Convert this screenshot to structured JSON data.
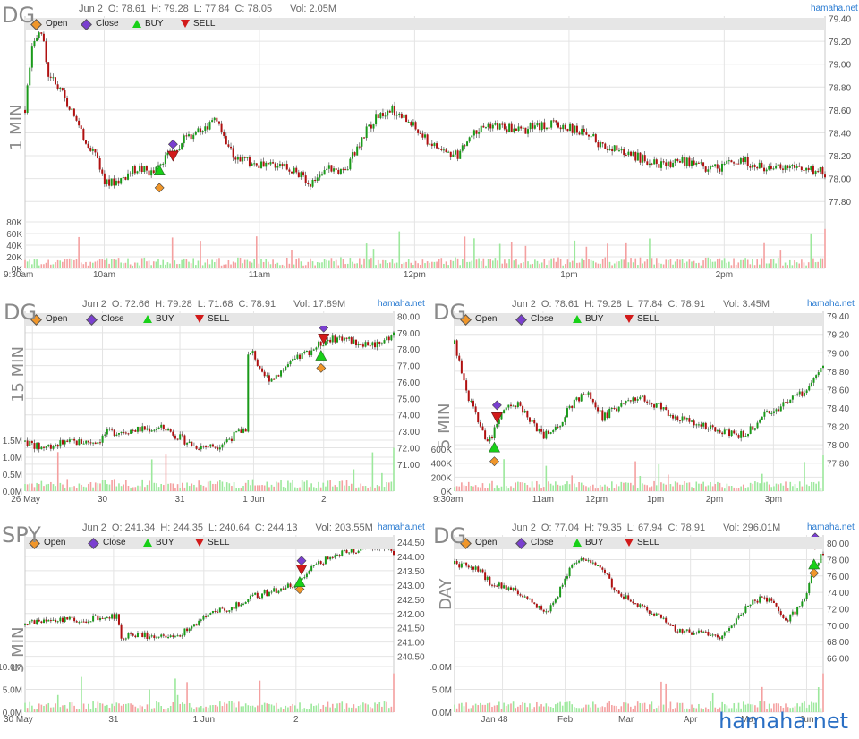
{
  "brand_small": "hamaha.net",
  "footer_brand": "hamaha.net",
  "legend": {
    "open": "Open",
    "close": "Close",
    "buy": "BUY",
    "sell": "SELL"
  },
  "colors": {
    "up": "#1a9a1a",
    "down": "#b01010",
    "grid": "#e4e4e4",
    "open": "#f0962a",
    "close": "#7a3fd0",
    "buy": "#18d018",
    "sell": "#d21a1a",
    "vol_up": "#9ce89c",
    "vol_down": "#f4a0a0"
  },
  "panels": [
    {
      "symbol": "DG",
      "interval": "1 MIN",
      "ohlc": {
        "date": "Jun 2",
        "o": "O: 78.61",
        "h": "H: 79.28",
        "l": "L: 77.84",
        "c": "C: 78.05",
        "vol": "Vol: 2.05M"
      },
      "chart_data": {
        "type": "candlestick",
        "ylim": [
          77.7,
          79.42
        ],
        "yticks": [
          "79.40",
          "79.20",
          "79.00",
          "78.80",
          "78.60",
          "78.40",
          "78.20",
          "78.00",
          "77.80"
        ],
        "ytick_values": [
          79.4,
          79.2,
          79.0,
          78.8,
          78.6,
          78.4,
          78.2,
          78.0,
          77.8
        ],
        "xticks": [
          "9:30am",
          "10am",
          "11am",
          "12pm",
          "1pm",
          "2pm"
        ],
        "xtick_pos": [
          0,
          0.099,
          0.293,
          0.487,
          0.68,
          0.874
        ],
        "vol_ticks": [
          "80K",
          "60K",
          "40K",
          "20K",
          "0K"
        ],
        "vol_max": 80000,
        "path": [
          [
            0,
            78.6
          ],
          [
            0.01,
            79.2
          ],
          [
            0.02,
            79.3
          ],
          [
            0.03,
            78.9
          ],
          [
            0.05,
            78.7
          ],
          [
            0.07,
            78.4
          ],
          [
            0.09,
            78.2
          ],
          [
            0.1,
            77.95
          ],
          [
            0.12,
            78.0
          ],
          [
            0.14,
            78.1
          ],
          [
            0.16,
            78.05
          ],
          [
            0.18,
            78.2
          ],
          [
            0.2,
            78.35
          ],
          [
            0.22,
            78.45
          ],
          [
            0.24,
            78.5
          ],
          [
            0.26,
            78.2
          ],
          [
            0.28,
            78.15
          ],
          [
            0.3,
            78.1
          ],
          [
            0.32,
            78.15
          ],
          [
            0.34,
            78.05
          ],
          [
            0.36,
            77.95
          ],
          [
            0.38,
            78.1
          ],
          [
            0.4,
            78.05
          ],
          [
            0.42,
            78.35
          ],
          [
            0.44,
            78.55
          ],
          [
            0.46,
            78.6
          ],
          [
            0.48,
            78.5
          ],
          [
            0.5,
            78.35
          ],
          [
            0.52,
            78.25
          ],
          [
            0.54,
            78.2
          ],
          [
            0.56,
            78.4
          ],
          [
            0.58,
            78.48
          ],
          [
            0.6,
            78.45
          ],
          [
            0.62,
            78.42
          ],
          [
            0.64,
            78.46
          ],
          [
            0.66,
            78.48
          ],
          [
            0.68,
            78.45
          ],
          [
            0.7,
            78.4
          ],
          [
            0.72,
            78.3
          ],
          [
            0.74,
            78.25
          ],
          [
            0.76,
            78.2
          ],
          [
            0.78,
            78.15
          ],
          [
            0.8,
            78.1
          ],
          [
            0.82,
            78.15
          ],
          [
            0.84,
            78.12
          ],
          [
            0.86,
            78.08
          ],
          [
            0.88,
            78.12
          ],
          [
            0.9,
            78.15
          ],
          [
            0.92,
            78.1
          ],
          [
            0.94,
            78.08
          ],
          [
            0.96,
            78.12
          ],
          [
            0.98,
            78.08
          ],
          [
            1,
            78.05
          ]
        ],
        "markers": [
          {
            "type": "open",
            "x": 0.168,
            "y": 77.92
          },
          {
            "type": "buy",
            "x": 0.168,
            "y": 78.07
          },
          {
            "type": "close",
            "x": 0.185,
            "y": 78.3
          },
          {
            "type": "sell",
            "x": 0.185,
            "y": 78.2
          }
        ],
        "seed": 3
      }
    },
    {
      "symbol": "DG",
      "interval": "15 MIN",
      "ohlc": {
        "date": "Jun 2",
        "o": "O: 72.66",
        "h": "H: 79.28",
        "l": "L: 71.68",
        "c": "C: 78.91",
        "vol": "Vol: 17.89M"
      },
      "chart_data": {
        "type": "candlestick",
        "ylim": [
          70.5,
          80.3
        ],
        "yticks": [
          "80.00",
          "79.00",
          "78.00",
          "77.00",
          "76.00",
          "75.00",
          "74.00",
          "73.00",
          "72.00",
          "71.00"
        ],
        "ytick_values": [
          80,
          79,
          78,
          77,
          76,
          75,
          74,
          73,
          72,
          71
        ],
        "xticks": [
          "26 May",
          "30",
          "31",
          "1 Jun",
          "2"
        ],
        "xtick_pos": [
          0.02,
          0.21,
          0.42,
          0.62,
          0.81
        ],
        "vol_ticks": [
          "1.5M",
          "1.0M",
          "0.5M",
          "0.0M"
        ],
        "vol_max": 1500000,
        "path": [
          [
            0,
            72.4
          ],
          [
            0.04,
            72.0
          ],
          [
            0.1,
            72.3
          ],
          [
            0.2,
            72.4
          ],
          [
            0.22,
            72.9
          ],
          [
            0.3,
            73.1
          ],
          [
            0.38,
            73.2
          ],
          [
            0.42,
            72.6
          ],
          [
            0.46,
            72.1
          ],
          [
            0.52,
            72.1
          ],
          [
            0.55,
            72.5
          ],
          [
            0.6,
            73.2
          ],
          [
            0.6,
            77.5
          ],
          [
            0.62,
            77.8
          ],
          [
            0.64,
            76.4
          ],
          [
            0.67,
            76.2
          ],
          [
            0.7,
            76.8
          ],
          [
            0.75,
            77.6
          ],
          [
            0.78,
            78.0
          ],
          [
            0.82,
            78.6
          ],
          [
            0.86,
            78.7
          ],
          [
            0.9,
            78.4
          ],
          [
            0.95,
            78.3
          ],
          [
            1,
            78.9
          ]
        ],
        "markers": [
          {
            "type": "open",
            "x": 0.803,
            "y": 76.85
          },
          {
            "type": "buy",
            "x": 0.803,
            "y": 77.6
          },
          {
            "type": "close",
            "x": 0.81,
            "y": 79.3
          },
          {
            "type": "sell",
            "x": 0.81,
            "y": 78.65
          }
        ],
        "seed": 7
      }
    },
    {
      "symbol": "DG",
      "interval": "5 MIN",
      "ohlc": {
        "date": "Jun 2",
        "o": "O: 78.61",
        "h": "H: 79.28",
        "l": "L: 77.84",
        "c": "C: 78.91",
        "vol": "Vol: 3.45M"
      },
      "chart_data": {
        "type": "candlestick",
        "ylim": [
          77.7,
          79.45
        ],
        "yticks": [
          "79.40",
          "79.20",
          "79.00",
          "78.80",
          "78.60",
          "78.40",
          "78.20",
          "78.00",
          "77.80"
        ],
        "ytick_values": [
          79.4,
          79.2,
          79.0,
          78.8,
          78.6,
          78.4,
          78.2,
          78.0,
          77.8
        ],
        "xticks": [
          "9:30am",
          "11am",
          "12pm",
          "1pm",
          "2pm",
          "3pm"
        ],
        "xtick_pos": [
          0.0,
          0.24,
          0.385,
          0.545,
          0.705,
          0.865
        ],
        "vol_ticks": [
          "600K",
          "400K",
          "200K",
          "0K"
        ],
        "vol_max": 600000,
        "path": [
          [
            0,
            79.1
          ],
          [
            0.03,
            78.6
          ],
          [
            0.06,
            78.3
          ],
          [
            0.09,
            78.0
          ],
          [
            0.13,
            78.35
          ],
          [
            0.17,
            78.45
          ],
          [
            0.2,
            78.3
          ],
          [
            0.24,
            78.1
          ],
          [
            0.28,
            78.2
          ],
          [
            0.32,
            78.45
          ],
          [
            0.36,
            78.6
          ],
          [
            0.4,
            78.3
          ],
          [
            0.44,
            78.4
          ],
          [
            0.48,
            78.48
          ],
          [
            0.52,
            78.5
          ],
          [
            0.56,
            78.4
          ],
          [
            0.6,
            78.3
          ],
          [
            0.64,
            78.25
          ],
          [
            0.68,
            78.2
          ],
          [
            0.72,
            78.15
          ],
          [
            0.76,
            78.1
          ],
          [
            0.8,
            78.15
          ],
          [
            0.84,
            78.35
          ],
          [
            0.88,
            78.4
          ],
          [
            0.92,
            78.5
          ],
          [
            0.96,
            78.6
          ],
          [
            1,
            78.9
          ]
        ],
        "markers": [
          {
            "type": "open",
            "x": 0.108,
            "y": 77.82
          },
          {
            "type": "buy",
            "x": 0.108,
            "y": 77.97
          },
          {
            "type": "close",
            "x": 0.115,
            "y": 78.43
          },
          {
            "type": "sell",
            "x": 0.115,
            "y": 78.3
          }
        ],
        "seed": 11
      }
    },
    {
      "symbol": "SPY",
      "interval": "5 MIN",
      "ohlc": {
        "date": "Jun 2",
        "o": "O: 241.34",
        "h": "H: 244.35",
        "l": "L: 240.64",
        "c": "C: 244.13",
        "vol": "Vol: 203.55M"
      },
      "chart_data": {
        "type": "candlestick",
        "ylim": [
          240.3,
          244.75
        ],
        "yticks": [
          "244.50",
          "244.00",
          "243.50",
          "243.00",
          "242.50",
          "242.00",
          "241.50",
          "241.00",
          "240.50"
        ],
        "ytick_values": [
          244.5,
          244,
          243.5,
          243,
          242.5,
          242,
          241.5,
          241,
          240.5
        ],
        "xticks": [
          "30 May",
          "31",
          "1 Jun",
          "2"
        ],
        "xtick_pos": [
          0.0,
          0.24,
          0.485,
          0.735
        ],
        "vol_ticks": [
          "10.0M",
          "5.0M",
          "0.0M"
        ],
        "vol_max": 10000000,
        "path": [
          [
            0,
            241.6
          ],
          [
            0.05,
            241.75
          ],
          [
            0.1,
            241.8
          ],
          [
            0.15,
            241.75
          ],
          [
            0.2,
            241.85
          ],
          [
            0.25,
            241.9
          ],
          [
            0.26,
            241.1
          ],
          [
            0.29,
            241.3
          ],
          [
            0.34,
            241.2
          ],
          [
            0.4,
            241.15
          ],
          [
            0.45,
            241.5
          ],
          [
            0.5,
            242.0
          ],
          [
            0.56,
            242.2
          ],
          [
            0.62,
            242.6
          ],
          [
            0.68,
            242.8
          ],
          [
            0.73,
            243.0
          ],
          [
            0.76,
            243.4
          ],
          [
            0.8,
            243.8
          ],
          [
            0.86,
            244.1
          ],
          [
            0.92,
            244.3
          ],
          [
            0.97,
            244.35
          ],
          [
            1,
            244.15
          ]
        ],
        "markers": [
          {
            "type": "open",
            "x": 0.745,
            "y": 242.85
          },
          {
            "type": "buy",
            "x": 0.745,
            "y": 243.1
          },
          {
            "type": "close",
            "x": 0.75,
            "y": 243.85
          },
          {
            "type": "sell",
            "x": 0.75,
            "y": 243.55
          }
        ],
        "seed": 19
      }
    },
    {
      "symbol": "DG",
      "interval": "DAY",
      "ohlc": {
        "date": "Jun 2",
        "o": "O: 77.04",
        "h": "H: 79.35",
        "l": "L: 67.94",
        "c": "C: 78.91",
        "vol": "Vol: 296.01M"
      },
      "chart_data": {
        "type": "candlestick",
        "ylim": [
          65.5,
          81
        ],
        "yticks": [
          "80.00",
          "78.00",
          "76.00",
          "74.00",
          "72.00",
          "70.00",
          "68.00",
          "66.00"
        ],
        "ytick_values": [
          80,
          78,
          76,
          74,
          72,
          70,
          68,
          66
        ],
        "xticks": [
          "Jan 48",
          "Feb",
          "Mar",
          "Apr",
          "May",
          "Jun"
        ],
        "xtick_pos": [
          0.13,
          0.3,
          0.465,
          0.64,
          0.8,
          0.955
        ],
        "vol_ticks": [
          "10.0M",
          "5.0M",
          "0.0M"
        ],
        "vol_max": 10000000,
        "path": [
          [
            0,
            77.5
          ],
          [
            0.06,
            77.0
          ],
          [
            0.1,
            75.0
          ],
          [
            0.15,
            74.5
          ],
          [
            0.2,
            73.2
          ],
          [
            0.25,
            71.5
          ],
          [
            0.28,
            73.8
          ],
          [
            0.32,
            77.5
          ],
          [
            0.36,
            78.0
          ],
          [
            0.4,
            77.0
          ],
          [
            0.44,
            74.0
          ],
          [
            0.48,
            73.0
          ],
          [
            0.52,
            72.0
          ],
          [
            0.56,
            71.0
          ],
          [
            0.6,
            69.5
          ],
          [
            0.64,
            69.0
          ],
          [
            0.68,
            69.2
          ],
          [
            0.72,
            68.5
          ],
          [
            0.76,
            70.5
          ],
          [
            0.8,
            72.5
          ],
          [
            0.84,
            73.5
          ],
          [
            0.88,
            72.0
          ],
          [
            0.9,
            70.5
          ],
          [
            0.93,
            72.0
          ],
          [
            0.95,
            73.0
          ],
          [
            0.97,
            76.5
          ],
          [
            1,
            78.9
          ]
        ],
        "markers": [
          {
            "type": "open",
            "x": 0.975,
            "y": 76.35
          },
          {
            "type": "buy",
            "x": 0.975,
            "y": 77.4
          },
          {
            "type": "close",
            "x": 0.978,
            "y": 80.7
          },
          {
            "type": "sell",
            "x": 0.978,
            "y": 79.9
          }
        ],
        "seed": 23
      }
    }
  ]
}
